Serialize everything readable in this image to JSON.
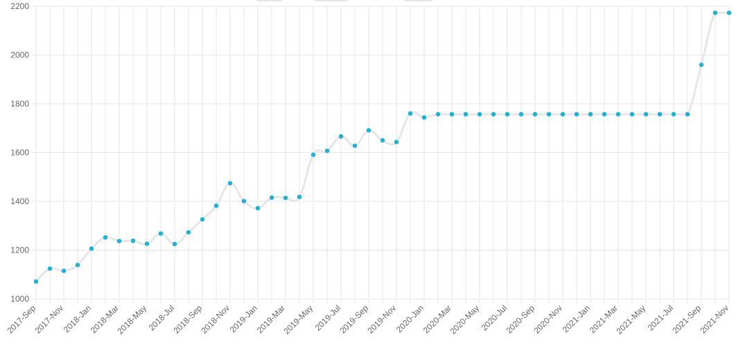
{
  "chart_data": {
    "type": "line",
    "title": "",
    "xlabel": "",
    "ylabel": "",
    "ylim": [
      1000,
      2200
    ],
    "y_ticks": [
      "1000",
      "1200",
      "1400",
      "1600",
      "1800",
      "2000",
      "2200"
    ],
    "x_tick_labels": [
      "2017-Sep",
      "2017-Nov",
      "2018-Jan",
      "2018-Mar",
      "2018-May",
      "2018-Jul",
      "2018-Sep",
      "2018-Nov",
      "2019-Jan",
      "2019-Mar",
      "2019-May",
      "2019-Jul",
      "2019-Sep",
      "2019-Nov",
      "2020-Jan",
      "2020-Mar",
      "2020-May",
      "2020-Jul",
      "2020-Sep",
      "2020-Nov",
      "2021-Jan",
      "2021-Mar",
      "2021-May",
      "2021-Jul",
      "2021-Sep",
      "2021-Nov"
    ],
    "x": [
      "2017-Sep",
      "2017-Oct",
      "2017-Nov",
      "2017-Dec",
      "2018-Jan",
      "2018-Feb",
      "2018-Mar",
      "2018-Apr",
      "2018-May",
      "2018-Jun",
      "2018-Jul",
      "2018-Aug",
      "2018-Sep",
      "2018-Oct",
      "2018-Nov",
      "2018-Dec",
      "2019-Jan",
      "2019-Feb",
      "2019-Mar",
      "2019-Apr",
      "2019-May",
      "2019-Jun",
      "2019-Jul",
      "2019-Aug",
      "2019-Sep",
      "2019-Oct",
      "2019-Nov",
      "2019-Dec",
      "2020-Jan",
      "2020-Feb",
      "2020-Mar",
      "2020-Apr",
      "2020-May",
      "2020-Jun",
      "2020-Jul",
      "2020-Aug",
      "2020-Sep",
      "2020-Oct",
      "2020-Nov",
      "2020-Dec",
      "2021-Jan",
      "2021-Feb",
      "2021-Mar",
      "2021-Apr",
      "2021-May",
      "2021-Jun",
      "2021-Jul",
      "2021-Aug",
      "2021-Sep",
      "2021-Oct",
      "2021-Nov"
    ],
    "series": [
      {
        "values": [
          1071,
          1124,
          1115,
          1139,
          1206,
          1252,
          1237,
          1238,
          1226,
          1268,
          1225,
          1273,
          1326,
          1382,
          1474,
          1401,
          1372,
          1415,
          1414,
          1418,
          1591,
          1607,
          1666,
          1628,
          1691,
          1650,
          1643,
          1760,
          1744,
          1757,
          1757,
          1757,
          1757,
          1757,
          1757,
          1757,
          1757,
          1757,
          1757,
          1757,
          1757,
          1757,
          1757,
          1757,
          1757,
          1757,
          1757,
          1757,
          1960,
          2173,
          2173
        ],
        "line_color": "#e6e6e6",
        "point_color": "#1bb3de"
      }
    ],
    "grid": true,
    "legend_position": "top-center"
  }
}
